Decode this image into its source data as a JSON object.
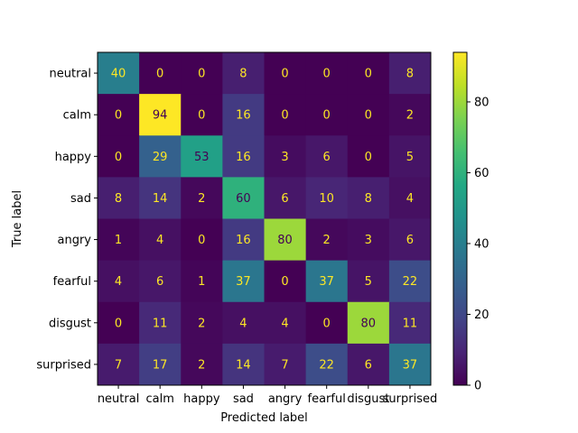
{
  "chart_data": {
    "type": "heatmap",
    "title": "",
    "xlabel": "Predicted label",
    "ylabel": "True label",
    "x_categories": [
      "neutral",
      "calm",
      "happy",
      "sad",
      "angry",
      "fearful",
      "disgust",
      "surprised"
    ],
    "y_categories": [
      "neutral",
      "calm",
      "happy",
      "sad",
      "angry",
      "fearful",
      "disgust",
      "surprised"
    ],
    "matrix": [
      [
        40,
        0,
        0,
        8,
        0,
        0,
        0,
        8
      ],
      [
        0,
        94,
        0,
        16,
        0,
        0,
        0,
        2
      ],
      [
        0,
        29,
        53,
        16,
        3,
        6,
        0,
        5
      ],
      [
        8,
        14,
        2,
        60,
        6,
        10,
        8,
        4
      ],
      [
        1,
        4,
        0,
        16,
        80,
        2,
        3,
        6
      ],
      [
        4,
        6,
        1,
        37,
        0,
        37,
        5,
        22
      ],
      [
        0,
        11,
        2,
        4,
        4,
        0,
        80,
        11
      ],
      [
        7,
        17,
        2,
        14,
        7,
        22,
        6,
        37
      ]
    ],
    "colorbar": {
      "colormap": "viridis",
      "vmin": 0,
      "vmax": 94,
      "ticks": [
        0,
        20,
        40,
        60,
        80
      ]
    },
    "grid": false
  }
}
